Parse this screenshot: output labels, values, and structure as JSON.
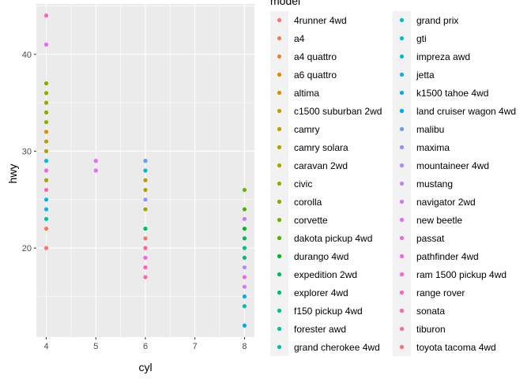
{
  "chart_data": {
    "type": "scatter",
    "title": "",
    "xlabel": "cyl",
    "ylabel": "hwy",
    "xlim": [
      3.8,
      8.2
    ],
    "ylim": [
      10.8,
      45.2
    ],
    "x_ticks": [
      4,
      5,
      6,
      7,
      8
    ],
    "y_ticks": [
      20,
      30,
      40
    ],
    "grid": true,
    "legend_title": "model",
    "legend_position": "right",
    "series": [
      {
        "name": "4runner 4wd",
        "color": "#F8766D",
        "points": []
      },
      {
        "name": "a4",
        "color": "#F27D52",
        "points": [
          [
            4,
            22
          ]
        ]
      },
      {
        "name": "a4 quattro",
        "color": "#EA8331",
        "points": []
      },
      {
        "name": "a6 quattro",
        "color": "#E18A00",
        "points": []
      },
      {
        "name": "altima",
        "color": "#D89000",
        "points": [
          [
            4,
            32
          ]
        ]
      },
      {
        "name": "c1500 suburban 2wd",
        "color": "#CD9600",
        "points": []
      },
      {
        "name": "camry",
        "color": "#C09B00",
        "points": [
          [
            4,
            31
          ],
          [
            6,
            27
          ]
        ]
      },
      {
        "name": "camry solara",
        "color": "#B3A000",
        "points": [
          [
            4,
            30
          ],
          [
            6,
            26
          ]
        ]
      },
      {
        "name": "caravan 2wd",
        "color": "#A3A500",
        "points": [
          [
            4,
            27
          ],
          [
            6,
            24
          ]
        ]
      },
      {
        "name": "civic",
        "color": "#93AA00",
        "points": [
          [
            4,
            33
          ],
          [
            4,
            35
          ],
          [
            4,
            36
          ]
        ]
      },
      {
        "name": "corolla",
        "color": "#7FAE00",
        "points": [
          [
            4,
            34
          ],
          [
            4,
            37
          ]
        ]
      },
      {
        "name": "corvette",
        "color": "#66B200",
        "points": [
          [
            8,
            26
          ]
        ]
      },
      {
        "name": "dakota pickup 4wd",
        "color": "#45B500",
        "points": [
          [
            8,
            24
          ]
        ]
      },
      {
        "name": "durango 4wd",
        "color": "#00B81F",
        "points": [
          [
            8,
            22
          ]
        ]
      },
      {
        "name": "expedition 2wd",
        "color": "#00BB4E",
        "points": [
          [
            8,
            21
          ]
        ]
      },
      {
        "name": "explorer 4wd",
        "color": "#00BE6C",
        "points": [
          [
            6,
            22
          ],
          [
            8,
            19
          ]
        ]
      },
      {
        "name": "f150 pickup 4wd",
        "color": "#00C086",
        "points": [
          [
            8,
            20
          ]
        ]
      },
      {
        "name": "forester awd",
        "color": "#00C09D",
        "points": [
          [
            4,
            23
          ]
        ]
      },
      {
        "name": "grand cherokee 4wd",
        "color": "#00C1B2",
        "points": [
          [
            8,
            14
          ]
        ]
      },
      {
        "name": "grand prix",
        "color": "#00BFC4",
        "points": [
          [
            6,
            28
          ]
        ]
      },
      {
        "name": "gti",
        "color": "#00BCD5",
        "points": [
          [
            4,
            29
          ]
        ]
      },
      {
        "name": "impreza awd",
        "color": "#00B8E4",
        "points": [
          [
            4,
            24
          ]
        ]
      },
      {
        "name": "jetta",
        "color": "#00B2F0",
        "points": [
          [
            4,
            25
          ]
        ]
      },
      {
        "name": "k1500 tahoe 4wd",
        "color": "#00ABFD",
        "points": [
          [
            8,
            15
          ]
        ]
      },
      {
        "name": "land cruiser wagon 4wd",
        "color": "#00A5FF",
        "points": [
          [
            8,
            12
          ]
        ]
      },
      {
        "name": "malibu",
        "color": "#619CFF",
        "points": [
          [
            6,
            29
          ]
        ]
      },
      {
        "name": "maxima",
        "color": "#8F91FF",
        "points": [
          [
            6,
            25
          ]
        ]
      },
      {
        "name": "mountaineer 4wd",
        "color": "#AD88FF",
        "points": [
          [
            8,
            18
          ]
        ]
      },
      {
        "name": "mustang",
        "color": "#C77CFF",
        "points": [
          [
            8,
            23
          ]
        ]
      },
      {
        "name": "navigator 2wd",
        "color": "#D575FE",
        "points": [
          [
            8,
            16
          ]
        ]
      },
      {
        "name": "new beetle",
        "color": "#E76BF3",
        "points": [
          [
            4,
            41
          ],
          [
            5,
            29
          ],
          [
            5,
            28
          ]
        ]
      },
      {
        "name": "passat",
        "color": "#EF66E5",
        "points": [
          [
            4,
            28
          ]
        ]
      },
      {
        "name": "pathfinder 4wd",
        "color": "#F763E0",
        "points": [
          [
            8,
            17
          ]
        ]
      },
      {
        "name": "ram 1500 pickup 4wd",
        "color": "#FC61D5",
        "points": [
          [
            6,
            19
          ]
        ]
      },
      {
        "name": "range rover",
        "color": "#FF62BC",
        "points": [
          [
            4,
            44
          ],
          [
            4,
            26
          ],
          [
            6,
            18
          ]
        ]
      },
      {
        "name": "sonata",
        "color": "#FF65AE",
        "points": [
          [
            6,
            17
          ]
        ]
      },
      {
        "name": "tiburon",
        "color": "#FF689F",
        "points": [
          [
            6,
            20
          ]
        ]
      },
      {
        "name": "toyota tacoma 4wd",
        "color": "#F8766D",
        "points": [
          [
            4,
            20
          ],
          [
            6,
            21
          ]
        ]
      }
    ]
  }
}
